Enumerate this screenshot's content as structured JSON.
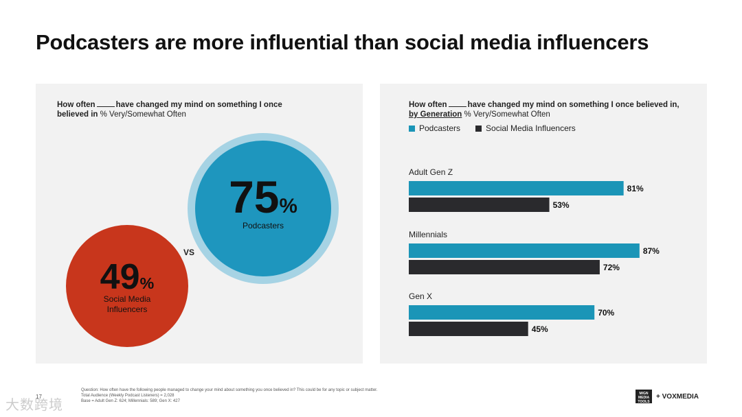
{
  "title": "Podcasters are more influential than social media influencers",
  "left_panel": {
    "question_bold_1": "How often",
    "question_bold_2": "have changed my mind on something I once believed in",
    "question_regular": "% Very/Somewhat Often",
    "podcasters": {
      "value": "75",
      "pct": "%",
      "label": "Podcasters"
    },
    "influencers": {
      "value": "49",
      "pct": "%",
      "label_line1": "Social Media",
      "label_line2": "Influencers"
    },
    "vs": "VS"
  },
  "right_panel": {
    "question_bold_1": "How often",
    "question_bold_2": "have changed my mind on something I once believed in,",
    "question_bold_3": "by Generation",
    "question_regular": "% Very/Somewhat Often"
  },
  "chart_data": {
    "type": "bar",
    "orientation": "horizontal",
    "categories": [
      "Adult Gen Z",
      "Millennials",
      "Gen X"
    ],
    "series": [
      {
        "name": "Podcasters",
        "values": [
          81,
          87,
          70
        ],
        "color": "#1b95b7"
      },
      {
        "name": "Social Media Influencers",
        "values": [
          53,
          72,
          45
        ],
        "color": "#2a2a2d"
      }
    ],
    "value_suffix": "%",
    "legend": "top-left",
    "xlim": [
      0,
      100
    ]
  },
  "colors": {
    "podcasters_circle": "#1e96be",
    "podcasters_ring": "#a6d3e4",
    "influencers_circle": "#c8361c",
    "panel_bg": "#f2f2f2"
  },
  "footer": {
    "line1": "Question: How often have the following people managed to change your mind about something you once believed in? This could be for any topic or subject matter.",
    "line2": "Total Audience (Weekly Podcast Listeners) = 2,028",
    "line3": "Base = Adult Gen Z: 624; Millennials: 589; Gen X: 427",
    "page_number": "17",
    "logo_box": "M/GN\nMEDIA TOOLS",
    "logo_text": "+ VOXMEDIA",
    "watermark": "大数跨境"
  }
}
